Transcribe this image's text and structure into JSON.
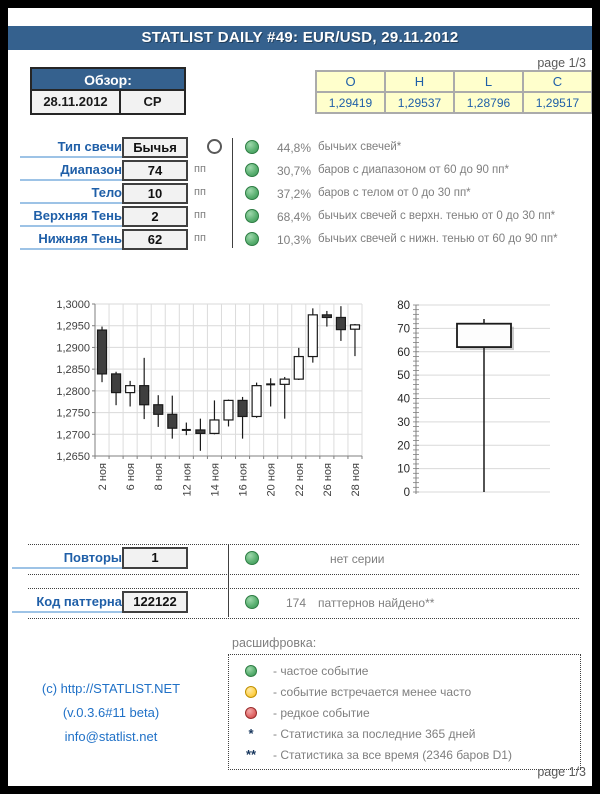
{
  "page": {
    "title": "STATLIST DAILY #49: EUR/USD, 29.11.2012",
    "page_indicator_top": "page 1/3",
    "page_indicator_bottom": "page 1/3"
  },
  "overview": {
    "header": "Обзор:",
    "date": "28.11.2012",
    "weekday": "СР"
  },
  "ohlc": {
    "headers": [
      "O",
      "H",
      "L",
      "C"
    ],
    "values": [
      "1,29419",
      "1,29537",
      "1,28796",
      "1,29517"
    ]
  },
  "stats": {
    "rows": [
      {
        "label": "Тип свечи",
        "value": "Бычья",
        "unit": "",
        "marker": "hollow-candle",
        "dot": "green",
        "percent": "44,8%",
        "description": "бычьих свечей*"
      },
      {
        "label": "Диапазон",
        "value": "74",
        "unit": "пп",
        "dot": "green",
        "percent": "30,7%",
        "description": "баров с диапазоном от 60 до 90 пп*"
      },
      {
        "label": "Тело",
        "value": "10",
        "unit": "пп",
        "dot": "green",
        "percent": "37,2%",
        "description": "баров с телом от 0 до 30 пп*"
      },
      {
        "label": "Верхняя Тень",
        "value": "2",
        "unit": "пп",
        "dot": "green",
        "percent": "68,4%",
        "description": "бычьих свечей с верхн. тенью от 0 до 30 пп*"
      },
      {
        "label": "Нижняя Тень",
        "value": "62",
        "unit": "пп",
        "dot": "green",
        "percent": "10,3%",
        "description": "бычьих свечей с нижн. тенью от 60 до 90 пп*"
      }
    ]
  },
  "repeats": {
    "label": "Повторы",
    "value": "1",
    "dot": "green",
    "description": "нет серии"
  },
  "pattern": {
    "label": "Код паттерна",
    "value": "122122",
    "dot": "green",
    "count": "174",
    "description": "паттернов найдено**"
  },
  "legend": {
    "title": "расшифровка:",
    "items": [
      {
        "marker": "green-dot",
        "text": "- частое событие"
      },
      {
        "marker": "yellow-dot",
        "text": "- событие встречается менее часто"
      },
      {
        "marker": "red-dot",
        "text": "- редкое событие"
      },
      {
        "marker": "*",
        "text": "- Статистика за последние 365 дней"
      },
      {
        "marker": "**",
        "text": "- Статистика за все время (2346 баров D1)"
      }
    ]
  },
  "footer": {
    "copyright": "(c) http://STATLIST.NET",
    "version": "(v.0.3.6#11 beta)",
    "email": "info@statlist.net"
  },
  "colors": {
    "header_bar": "#35618E",
    "accent_blue": "#1F5FA8",
    "underline_blue": "#9DC3E6",
    "table_yellow": "#FFFFCC",
    "box_gray": "#F2F2F2",
    "text_gray": "#7F7F7F",
    "green_dot": "#57AE6E",
    "yellow_dot": "#FFD24D",
    "red_dot": "#E06666",
    "link_blue": "#2071C7",
    "bear_candle": "#3F3F3F",
    "bull_candle": "#FFFFFF"
  },
  "chart_data": [
    {
      "type": "candlestick",
      "title": "EUR/USD D1 ноябрь 2012",
      "ylim": [
        1.265,
        1.3
      ],
      "y_ticks": [
        1.3,
        1.295,
        1.29,
        1.285,
        1.28,
        1.275,
        1.27,
        1.265
      ],
      "y_tick_labels": [
        "1,3000",
        "1,2950",
        "1,2900",
        "1,2850",
        "1,2800",
        "1,2750",
        "1,2700",
        "1,2650"
      ],
      "x_labels": [
        "2 ноя",
        "6 ноя",
        "8 ноя",
        "12 ноя",
        "14 ноя",
        "16 ноя",
        "20 ноя",
        "22 ноя",
        "26 ноя",
        "28 ноя"
      ],
      "label_every": 2,
      "grid": true,
      "candles": [
        {
          "x": "2 ноя",
          "o": 1.294,
          "h": 1.2948,
          "l": 1.282,
          "c": 1.2839
        },
        {
          "x": "5 ноя",
          "o": 1.2839,
          "h": 1.2844,
          "l": 1.2767,
          "c": 1.2796
        },
        {
          "x": "6 ноя",
          "o": 1.2796,
          "h": 1.2823,
          "l": 1.2764,
          "c": 1.2812
        },
        {
          "x": "7 ноя",
          "o": 1.2812,
          "h": 1.2876,
          "l": 1.2735,
          "c": 1.2768
        },
        {
          "x": "8 ноя",
          "o": 1.2768,
          "h": 1.279,
          "l": 1.2717,
          "c": 1.2746
        },
        {
          "x": "9 ноя",
          "o": 1.2746,
          "h": 1.2789,
          "l": 1.269,
          "c": 1.2714
        },
        {
          "x": "12 ноя",
          "o": 1.2714,
          "h": 1.2727,
          "l": 1.2698,
          "c": 1.271
        },
        {
          "x": "13 ноя",
          "o": 1.271,
          "h": 1.2736,
          "l": 1.2662,
          "c": 1.2702
        },
        {
          "x": "14 ноя",
          "o": 1.2702,
          "h": 1.2778,
          "l": 1.27,
          "c": 1.2733
        },
        {
          "x": "15 ноя",
          "o": 1.2733,
          "h": 1.278,
          "l": 1.2718,
          "c": 1.2778
        },
        {
          "x": "16 ноя",
          "o": 1.2778,
          "h": 1.2786,
          "l": 1.269,
          "c": 1.2741
        },
        {
          "x": "19 ноя",
          "o": 1.2741,
          "h": 1.2819,
          "l": 1.2738,
          "c": 1.2812
        },
        {
          "x": "20 ноя",
          "o": 1.2812,
          "h": 1.2829,
          "l": 1.2764,
          "c": 1.2815
        },
        {
          "x": "21 ноя",
          "o": 1.2815,
          "h": 1.2832,
          "l": 1.2736,
          "c": 1.2827
        },
        {
          "x": "22 ноя",
          "o": 1.2827,
          "h": 1.2899,
          "l": 1.2825,
          "c": 1.2879
        },
        {
          "x": "23 ноя",
          "o": 1.2879,
          "h": 1.299,
          "l": 1.2865,
          "c": 1.2975
        },
        {
          "x": "26 ноя",
          "o": 1.2975,
          "h": 1.2984,
          "l": 1.2948,
          "c": 1.2969
        },
        {
          "x": "27 ноя",
          "o": 1.2969,
          "h": 1.2995,
          "l": 1.2915,
          "c": 1.2941
        },
        {
          "x": "28 ноя",
          "o": 1.2942,
          "h": 1.2954,
          "l": 1.288,
          "c": 1.2952
        }
      ]
    },
    {
      "type": "candlestick",
      "title": "текущая свеча в пунктах",
      "ylim": [
        0,
        80
      ],
      "y_tick_step": 10,
      "y_minor_step": 2,
      "grid": true,
      "candles": [
        {
          "x": "28 ноя",
          "o": 62,
          "h": 74,
          "l": 0,
          "c": 72
        }
      ]
    }
  ]
}
